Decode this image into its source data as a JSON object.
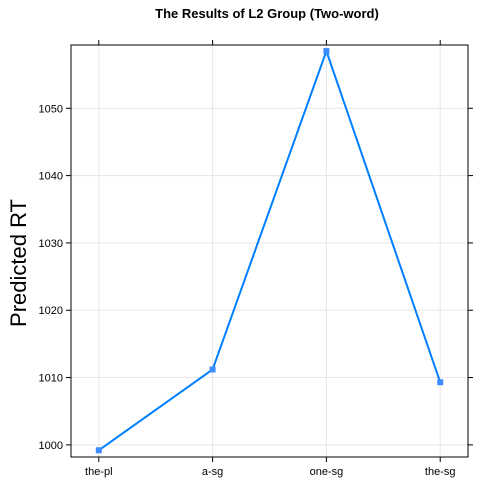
{
  "chart_data": {
    "type": "line",
    "title": "The Results of L2 Group (Two-word)",
    "xlabel": "",
    "ylabel": "Predicted RT",
    "categories": [
      "the-pl",
      "a-sg",
      "one-sg",
      "the-sg"
    ],
    "series": [
      {
        "values": [
          999.2,
          1011.2,
          1058.5,
          1009.3
        ]
      }
    ],
    "ylim": [
      998.2,
      1059.4
    ],
    "yticks": [
      1000,
      1010,
      1020,
      1030,
      1040,
      1050
    ],
    "grid": true,
    "line_color": "#0080ff",
    "marker_color": "#3d8cff"
  }
}
